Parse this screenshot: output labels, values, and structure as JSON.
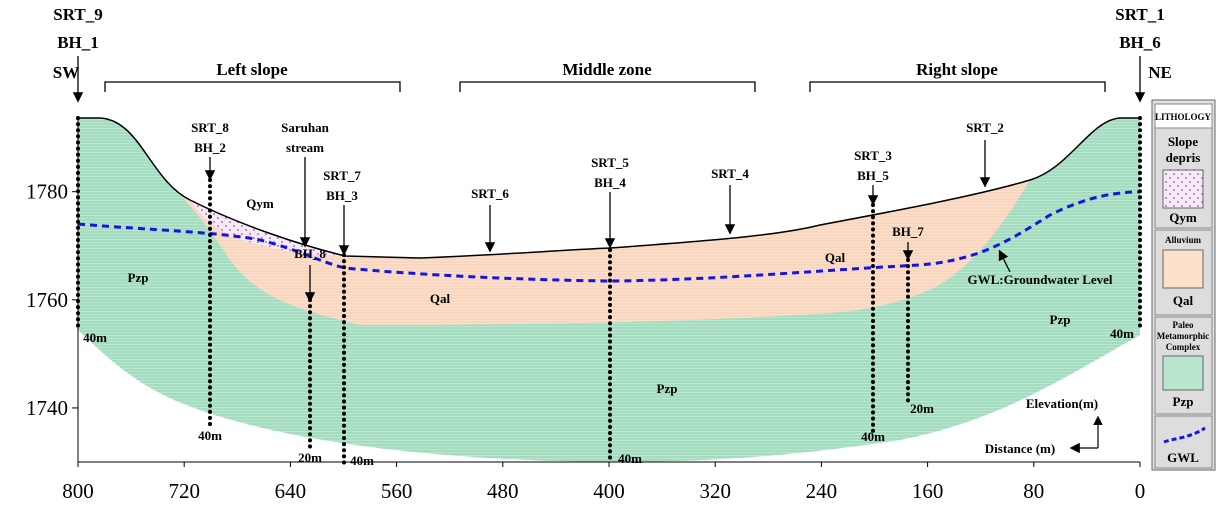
{
  "header": {
    "left": [
      "SRT_9",
      "BH_1",
      "SW"
    ],
    "right": [
      "SRT_1",
      "BH_6",
      "NE"
    ]
  },
  "zones": [
    "Left slope",
    "Middle zone",
    "Right slope"
  ],
  "annotations": {
    "srt8": "SRT_8",
    "bh2": "BH_2",
    "saruhan": "Saruhan",
    "stream": "stream",
    "srt7": "SRT_7",
    "bh3": "BH_3",
    "srt6": "SRT_6",
    "srt5": "SRT_5",
    "bh4": "BH_4",
    "srt4": "SRT_4",
    "srt3": "SRT_3",
    "bh5": "BH_5",
    "srt2": "SRT_2",
    "bh7": "BH_7",
    "bh8": "BH_8",
    "qym": "Qym",
    "qal1": "Qal",
    "qal2": "Qal",
    "pzp1": "Pzp",
    "pzp2": "Pzp",
    "pzp3": "Pzp",
    "gwl": "GWL:Groundwater Level",
    "d1": "40m",
    "d2": "40m",
    "d3": "20m",
    "d4": "40m",
    "d5": "40m",
    "d6": "40m",
    "d7": "20m",
    "d8": "40m",
    "elevation": "Elevation(m)",
    "distance": "Distance (m)"
  },
  "legend": {
    "title": "LITHOLOGY",
    "items": [
      {
        "desc": [
          "Slope",
          "depris"
        ],
        "code": "Qym"
      },
      {
        "desc": [
          "Alluvium"
        ],
        "code": "Qal"
      },
      {
        "desc": [
          "Paleo",
          "Metamorphic",
          "Complex"
        ],
        "code": "Pzp"
      },
      {
        "code": "GWL"
      }
    ]
  },
  "axes": {
    "xlim": [
      800,
      0
    ],
    "xticks": [
      800,
      720,
      640,
      560,
      480,
      400,
      320,
      240,
      160,
      80,
      0
    ],
    "ylim": [
      1730,
      1794
    ],
    "yticks": [
      1740,
      1760,
      1780
    ]
  }
}
